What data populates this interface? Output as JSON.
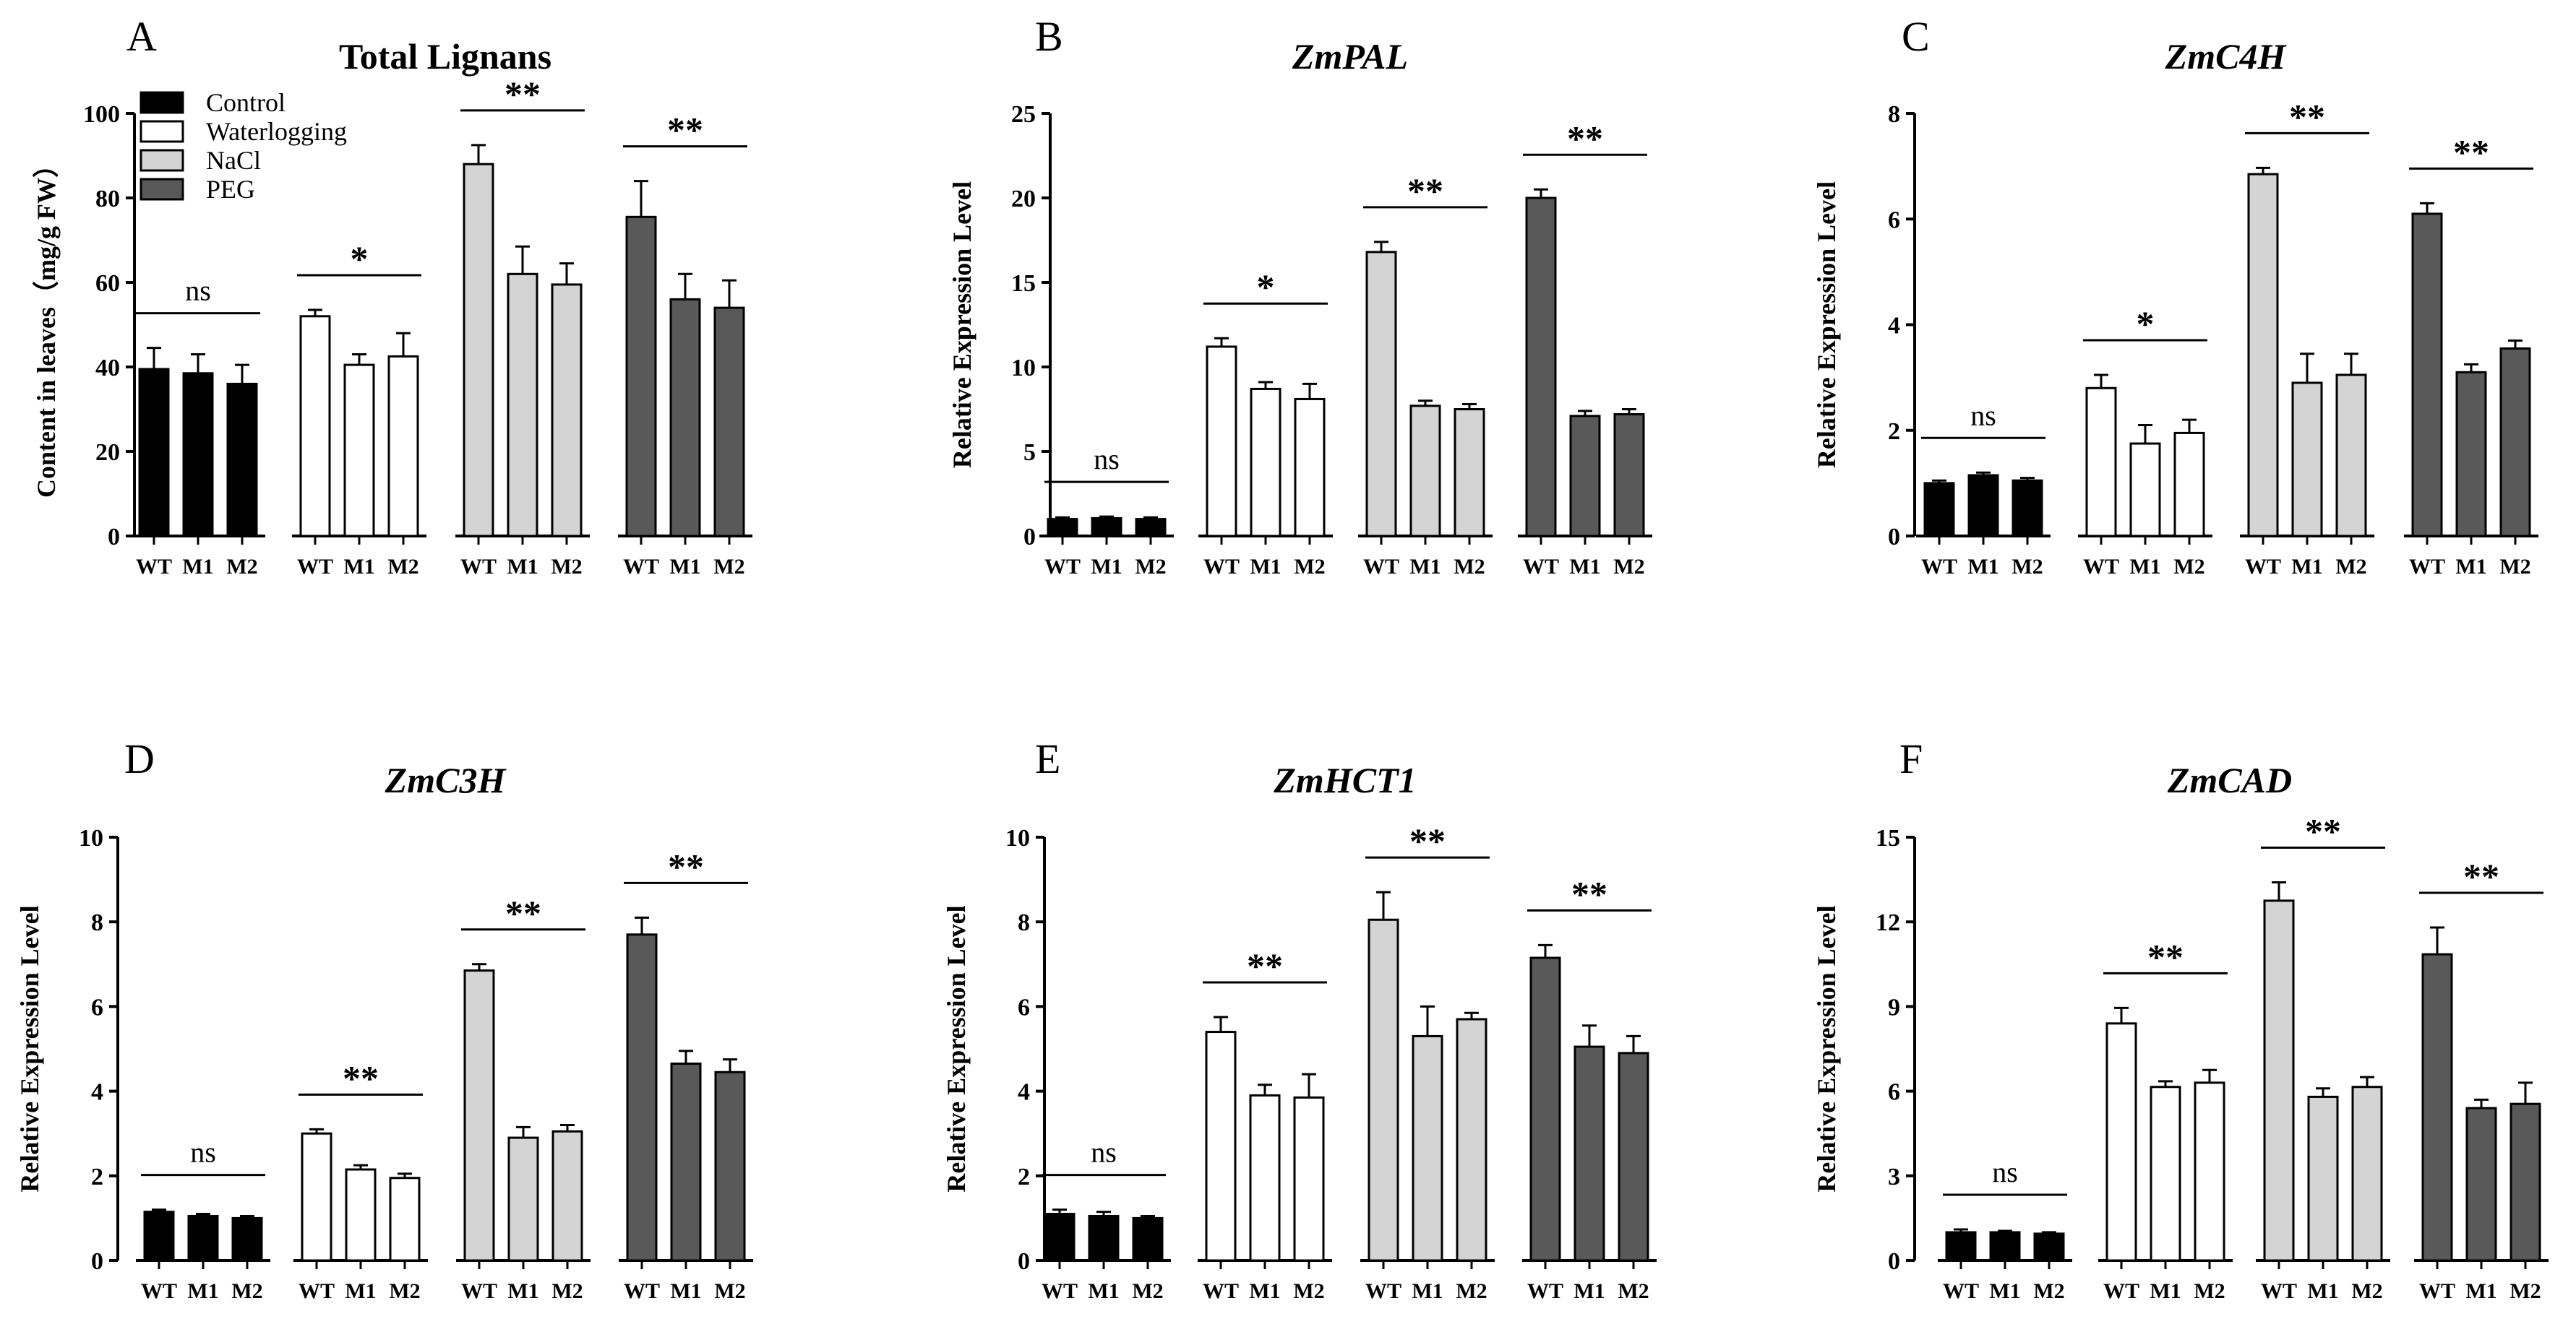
{
  "legend": [
    {
      "label": "Control",
      "color": "#000000"
    },
    {
      "label": "Waterlogging",
      "color": "#ffffff"
    },
    {
      "label": "NaCl",
      "color": "#d4d4d4"
    },
    {
      "label": "PEG",
      "color": "#595959"
    }
  ],
  "chart_data": [
    {
      "type": "bar",
      "panel": "A",
      "title": "Total Lignans",
      "title_italic": false,
      "ylabel": "Content in leaves（mg/g FW）",
      "ylim": [
        0,
        100
      ],
      "yticks": [
        0,
        20,
        40,
        60,
        80,
        100
      ],
      "categories": [
        "WT",
        "M1",
        "M2"
      ],
      "groups": [
        {
          "treatment": "Control",
          "values": [
            39.5,
            38.5,
            36.0
          ],
          "errors": [
            5.0,
            4.5,
            4.5
          ],
          "significance": "ns"
        },
        {
          "treatment": "Waterlogging",
          "values": [
            52.0,
            40.5,
            42.5
          ],
          "errors": [
            1.5,
            2.5,
            5.5
          ],
          "significance": "*"
        },
        {
          "treatment": "NaCl",
          "values": [
            88.0,
            62.0,
            59.5
          ],
          "errors": [
            4.5,
            6.5,
            5.0
          ],
          "significance": "**"
        },
        {
          "treatment": "PEG",
          "values": [
            75.5,
            56.0,
            54.0
          ],
          "errors": [
            8.5,
            6.0,
            6.5
          ],
          "significance": "**"
        }
      ]
    },
    {
      "type": "bar",
      "panel": "B",
      "title": "ZmPAL",
      "title_italic": true,
      "ylabel": "Relative Expression Level",
      "ylim": [
        0,
        25
      ],
      "yticks": [
        0,
        5,
        10,
        15,
        20,
        25
      ],
      "categories": [
        "WT",
        "M1",
        "M2"
      ],
      "groups": [
        {
          "treatment": "Control",
          "values": [
            1.0,
            1.05,
            1.0
          ],
          "errors": [
            0.1,
            0.1,
            0.1
          ],
          "significance": "ns"
        },
        {
          "treatment": "Waterlogging",
          "values": [
            11.2,
            8.7,
            8.1
          ],
          "errors": [
            0.5,
            0.4,
            0.9
          ],
          "significance": "*"
        },
        {
          "treatment": "NaCl",
          "values": [
            16.8,
            7.7,
            7.5
          ],
          "errors": [
            0.6,
            0.3,
            0.3
          ],
          "significance": "**"
        },
        {
          "treatment": "PEG",
          "values": [
            20.0,
            7.1,
            7.2
          ],
          "errors": [
            0.5,
            0.3,
            0.3
          ],
          "significance": "**"
        }
      ]
    },
    {
      "type": "bar",
      "panel": "C",
      "title": "ZmC4H",
      "title_italic": true,
      "ylabel": "Relative Expression Level",
      "ylim": [
        0,
        8
      ],
      "yticks": [
        0,
        2,
        4,
        6,
        8
      ],
      "categories": [
        "WT",
        "M1",
        "M2"
      ],
      "groups": [
        {
          "treatment": "Control",
          "values": [
            1.0,
            1.15,
            1.05
          ],
          "errors": [
            0.05,
            0.05,
            0.05
          ],
          "significance": "ns"
        },
        {
          "treatment": "Waterlogging",
          "values": [
            2.8,
            1.75,
            1.95
          ],
          "errors": [
            0.25,
            0.35,
            0.25
          ],
          "significance": "*"
        },
        {
          "treatment": "NaCl",
          "values": [
            6.85,
            2.9,
            3.05
          ],
          "errors": [
            0.12,
            0.55,
            0.4
          ],
          "significance": "**"
        },
        {
          "treatment": "PEG",
          "values": [
            6.1,
            3.1,
            3.55
          ],
          "errors": [
            0.2,
            0.15,
            0.15
          ],
          "significance": "**"
        }
      ]
    },
    {
      "type": "bar",
      "panel": "D",
      "title": "ZmC3H",
      "title_italic": true,
      "ylabel": "Relative Expression Level",
      "ylim": [
        0,
        10
      ],
      "yticks": [
        0,
        2,
        4,
        6,
        8,
        10
      ],
      "categories": [
        "WT",
        "M1",
        "M2"
      ],
      "groups": [
        {
          "treatment": "Control",
          "values": [
            1.15,
            1.05,
            1.0
          ],
          "errors": [
            0.05,
            0.05,
            0.05
          ],
          "significance": "ns"
        },
        {
          "treatment": "Waterlogging",
          "values": [
            3.0,
            2.15,
            1.95
          ],
          "errors": [
            0.1,
            0.1,
            0.1
          ],
          "significance": "**"
        },
        {
          "treatment": "NaCl",
          "values": [
            6.85,
            2.9,
            3.05
          ],
          "errors": [
            0.15,
            0.25,
            0.15
          ],
          "significance": "**"
        },
        {
          "treatment": "PEG",
          "values": [
            7.7,
            4.65,
            4.45
          ],
          "errors": [
            0.4,
            0.3,
            0.3
          ],
          "significance": "**"
        }
      ]
    },
    {
      "type": "bar",
      "panel": "E",
      "title": "ZmHCT1",
      "title_italic": true,
      "ylabel": "Relative Expression Level",
      "ylim": [
        0,
        10
      ],
      "yticks": [
        0,
        2,
        4,
        6,
        8,
        10
      ],
      "categories": [
        "WT",
        "M1",
        "M2"
      ],
      "groups": [
        {
          "treatment": "Control",
          "values": [
            1.1,
            1.05,
            1.0
          ],
          "errors": [
            0.1,
            0.1,
            0.05
          ],
          "significance": "ns"
        },
        {
          "treatment": "Waterlogging",
          "values": [
            5.4,
            3.9,
            3.85
          ],
          "errors": [
            0.35,
            0.25,
            0.55
          ],
          "significance": "**"
        },
        {
          "treatment": "NaCl",
          "values": [
            8.05,
            5.3,
            5.7
          ],
          "errors": [
            0.65,
            0.7,
            0.15
          ],
          "significance": "**"
        },
        {
          "treatment": "PEG",
          "values": [
            7.15,
            5.05,
            4.9
          ],
          "errors": [
            0.3,
            0.5,
            0.4
          ],
          "significance": "**"
        }
      ]
    },
    {
      "type": "bar",
      "panel": "F",
      "title": "ZmCAD",
      "title_italic": true,
      "ylabel": "Relative Expression Level",
      "ylim": [
        0,
        15
      ],
      "yticks": [
        0,
        3,
        6,
        9,
        12,
        15
      ],
      "categories": [
        "WT",
        "M1",
        "M2"
      ],
      "groups": [
        {
          "treatment": "Control",
          "values": [
            1.0,
            1.0,
            0.95
          ],
          "errors": [
            0.1,
            0.05,
            0.05
          ],
          "significance": "ns"
        },
        {
          "treatment": "Waterlogging",
          "values": [
            8.4,
            6.15,
            6.3
          ],
          "errors": [
            0.55,
            0.2,
            0.45
          ],
          "significance": "**"
        },
        {
          "treatment": "NaCl",
          "values": [
            12.75,
            5.8,
            6.15
          ],
          "errors": [
            0.65,
            0.3,
            0.35
          ],
          "significance": "**"
        },
        {
          "treatment": "PEG",
          "values": [
            10.85,
            5.4,
            5.55
          ],
          "errors": [
            0.95,
            0.3,
            0.75
          ],
          "significance": "**"
        }
      ]
    }
  ]
}
